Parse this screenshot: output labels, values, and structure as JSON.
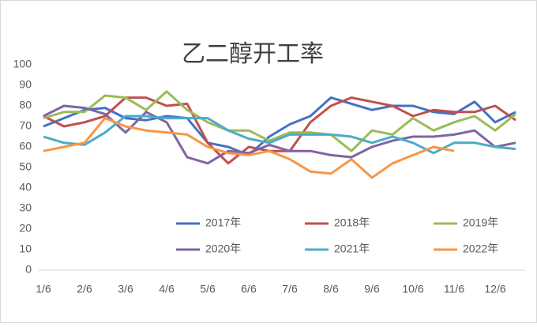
{
  "chart_data": {
    "type": "line",
    "title": "乙二醇开工率",
    "categories": [
      "1/6",
      null,
      "2/6",
      null,
      "3/6",
      null,
      "4/6",
      null,
      "5/6",
      null,
      "6/6",
      null,
      "7/6",
      null,
      "8/6",
      null,
      "9/6",
      null,
      "10/6",
      null,
      "11/6",
      null,
      "12/6",
      null
    ],
    "series": [
      {
        "name": "2017年",
        "color": "#4472c4",
        "values": [
          70,
          74,
          78,
          79,
          74,
          73,
          75,
          74,
          62,
          60,
          56,
          65,
          71,
          75,
          84,
          81,
          78,
          80,
          80,
          77,
          76,
          82,
          72,
          77
        ]
      },
      {
        "name": "2018年",
        "color": "#c0504d",
        "values": [
          75,
          70,
          72,
          75,
          84,
          84,
          80,
          81,
          62,
          52,
          60,
          58,
          58,
          72,
          80,
          84,
          82,
          80,
          75,
          78,
          77,
          77,
          80,
          73
        ]
      },
      {
        "name": "2019年",
        "color": "#9bbb59",
        "values": [
          74,
          77,
          77,
          85,
          84,
          78,
          87,
          78,
          72,
          68,
          68,
          63,
          67,
          67,
          66,
          58,
          68,
          66,
          74,
          68,
          72,
          75,
          68,
          76
        ]
      },
      {
        "name": "2020年",
        "color": "#8064a2",
        "values": [
          75,
          80,
          79,
          76,
          67,
          77,
          72,
          55,
          52,
          58,
          57,
          61,
          58,
          58,
          56,
          55,
          60,
          63,
          65,
          65,
          66,
          68,
          60,
          62
        ]
      },
      {
        "name": "2021年",
        "color": "#4bacc6",
        "values": [
          65,
          62,
          61,
          67,
          75,
          75,
          74,
          74,
          74,
          68,
          64,
          62,
          66,
          66,
          66,
          65,
          62,
          65,
          62,
          57,
          62,
          62,
          60,
          59
        ]
      },
      {
        "name": "2022年",
        "color": "#f79646",
        "values": [
          58,
          60,
          62,
          74,
          70,
          68,
          67,
          66,
          60,
          57,
          56,
          58,
          54,
          48,
          47,
          54,
          45,
          52,
          56,
          60,
          58,
          null,
          null,
          null
        ]
      }
    ],
    "ylim": [
      0,
      100
    ],
    "yticks": [
      0,
      10,
      20,
      30,
      40,
      50,
      60,
      70,
      80,
      90,
      100
    ],
    "grid": false
  }
}
